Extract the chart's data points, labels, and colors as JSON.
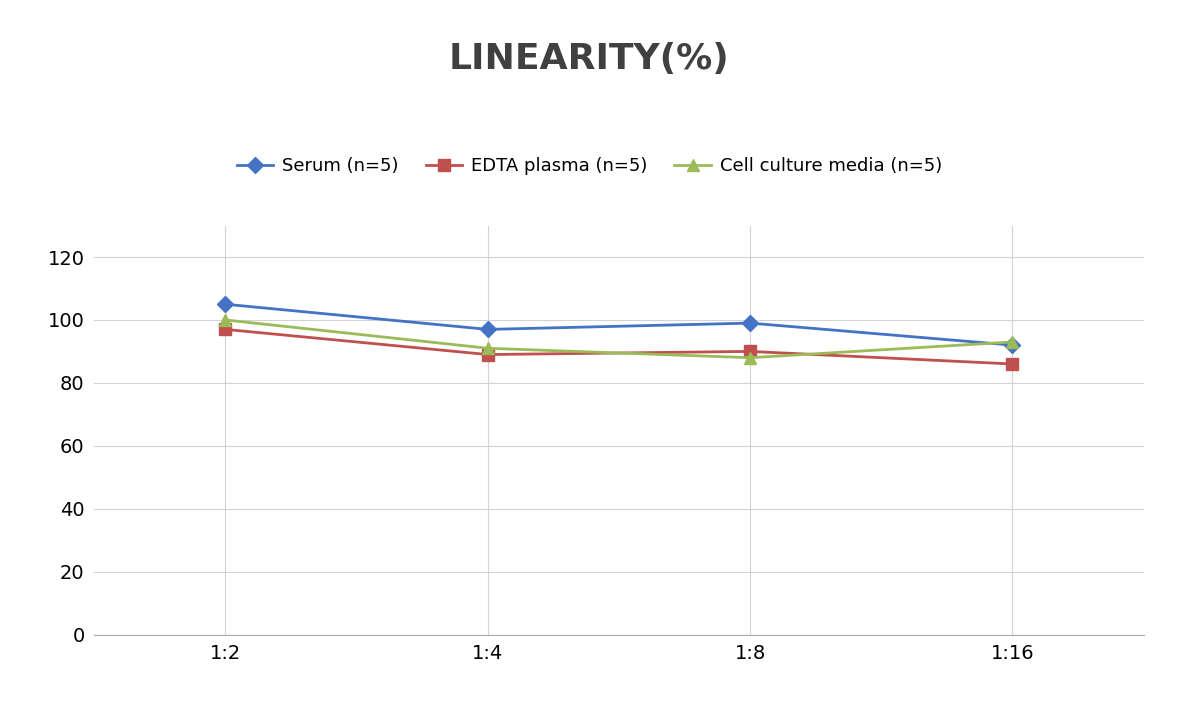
{
  "title": "LINEARITY(%)",
  "x_labels": [
    "1:2",
    "1:4",
    "1:8",
    "1:16"
  ],
  "x_positions": [
    0,
    1,
    2,
    3
  ],
  "series": [
    {
      "name": "Serum (n=5)",
      "values": [
        105,
        97,
        99,
        92
      ],
      "color": "#4472C4",
      "marker": "D",
      "linewidth": 2,
      "markersize": 8
    },
    {
      "name": "EDTA plasma (n=5)",
      "values": [
        97,
        89,
        90,
        86
      ],
      "color": "#C0504D",
      "marker": "s",
      "linewidth": 2,
      "markersize": 8
    },
    {
      "name": "Cell culture media (n=5)",
      "values": [
        100,
        91,
        88,
        93
      ],
      "color": "#9BBB59",
      "marker": "^",
      "linewidth": 2,
      "markersize": 8
    }
  ],
  "ylim": [
    0,
    130
  ],
  "yticks": [
    0,
    20,
    40,
    60,
    80,
    100,
    120
  ],
  "grid_color": "#D3D3D3",
  "background_color": "#FFFFFF",
  "title_fontsize": 26,
  "legend_fontsize": 13,
  "tick_fontsize": 14
}
